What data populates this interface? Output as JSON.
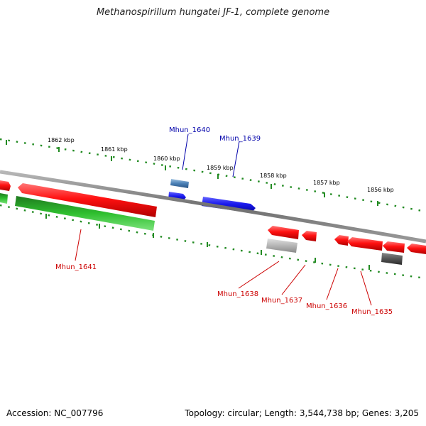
{
  "title": "Methanospirillum hungatei JF-1, complete genome",
  "footer": {
    "accession": "Accession: NC_007796",
    "summary": "Topology: circular; Length: 3,544,738 bp; Genes: 3,205"
  },
  "colors": {
    "backbone": "#7a7a7a",
    "tick": "#228b22",
    "forward_gene": "#1a1aee",
    "forward_gene_alt": "#4a7fb5",
    "reverse_gene": "#ee1111",
    "rna_gene": "#2fbf2f",
    "pseudo_gene": "#aaaaaa",
    "dark_gene": "#555555",
    "label_forward": "#0000aa",
    "label_reverse": "#cc0000"
  },
  "scale_ticks": [
    {
      "label": "1862 kbp"
    },
    {
      "label": "1861 kbp"
    },
    {
      "label": "1860 kbp"
    },
    {
      "label": "1859 kbp"
    },
    {
      "label": "1858 kbp"
    },
    {
      "label": "1857 kbp"
    },
    {
      "label": "1856 kbp"
    }
  ],
  "gene_labels": [
    {
      "name": "Mhun_1640",
      "strand": "forward"
    },
    {
      "name": "Mhun_1639",
      "strand": "forward"
    },
    {
      "name": "Mhun_1641",
      "strand": "reverse"
    },
    {
      "name": "Mhun_1638",
      "strand": "reverse"
    },
    {
      "name": "Mhun_1637",
      "strand": "reverse"
    },
    {
      "name": "Mhun_1636",
      "strand": "reverse"
    },
    {
      "name": "Mhun_1635",
      "strand": "reverse"
    }
  ]
}
